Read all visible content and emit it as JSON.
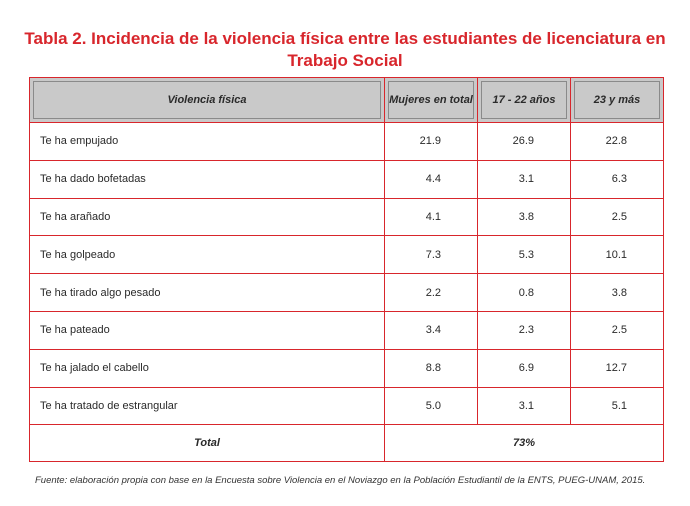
{
  "title": "Tabla 2. Incidencia de la violencia física entre las estudiantes de licenciatura en Trabajo Social",
  "headers": [
    "Violencia física",
    "Mujeres en total",
    "17 - 22 años",
    "23 y más"
  ],
  "rows": [
    {
      "label": "Te ha empujado",
      "total": "21.9",
      "age1722": "26.9",
      "age23": "22.8"
    },
    {
      "label": "Te ha dado bofetadas",
      "total": "4.4",
      "age1722": "3.1",
      "age23": "6.3"
    },
    {
      "label": "Te ha arañado",
      "total": "4.1",
      "age1722": "3.8",
      "age23": "2.5"
    },
    {
      "label": "Te ha golpeado",
      "total": "7.3",
      "age1722": "5.3",
      "age23": "10.1"
    },
    {
      "label": "Te ha tirado algo pesado",
      "total": "2.2",
      "age1722": "0.8",
      "age23": "3.8"
    },
    {
      "label": "Te ha pateado",
      "total": "3.4",
      "age1722": "2.3",
      "age23": "2.5"
    },
    {
      "label": "Te ha jalado el cabello",
      "total": "8.8",
      "age1722": "6.9",
      "age23": "12.7"
    },
    {
      "label": "Te ha tratado de estrangular",
      "total": "5.0",
      "age1722": "3.1",
      "age23": "5.1"
    }
  ],
  "footer": {
    "label": "Total",
    "value": "73%"
  },
  "source": "Fuente: elaboración propia con base en la Encuesta sobre Violencia en el Noviazgo en la Población Estudiantil de la ENTS, PUEG-UNAM, 2015.",
  "colors": {
    "accent": "#d8262c",
    "header_bg": "#c9c9c9"
  }
}
